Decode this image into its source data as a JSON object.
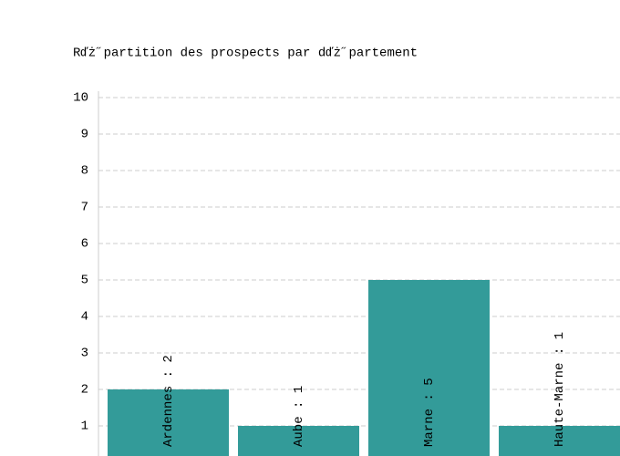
{
  "chart_data": {
    "type": "bar",
    "title": "Rďż˝partition des prospects par dďż˝partement",
    "values": [
      2,
      1,
      5,
      1
    ],
    "value_labels": [
      "Ardennes : 2",
      "Aube : 1",
      "Marne : 5",
      "Haute-Marne : 1"
    ],
    "color": "#339b99",
    "ylim": [
      0,
      10
    ],
    "yticks": [
      1,
      2,
      3,
      4,
      5,
      6,
      7,
      8,
      9,
      10
    ],
    "grid": true
  }
}
